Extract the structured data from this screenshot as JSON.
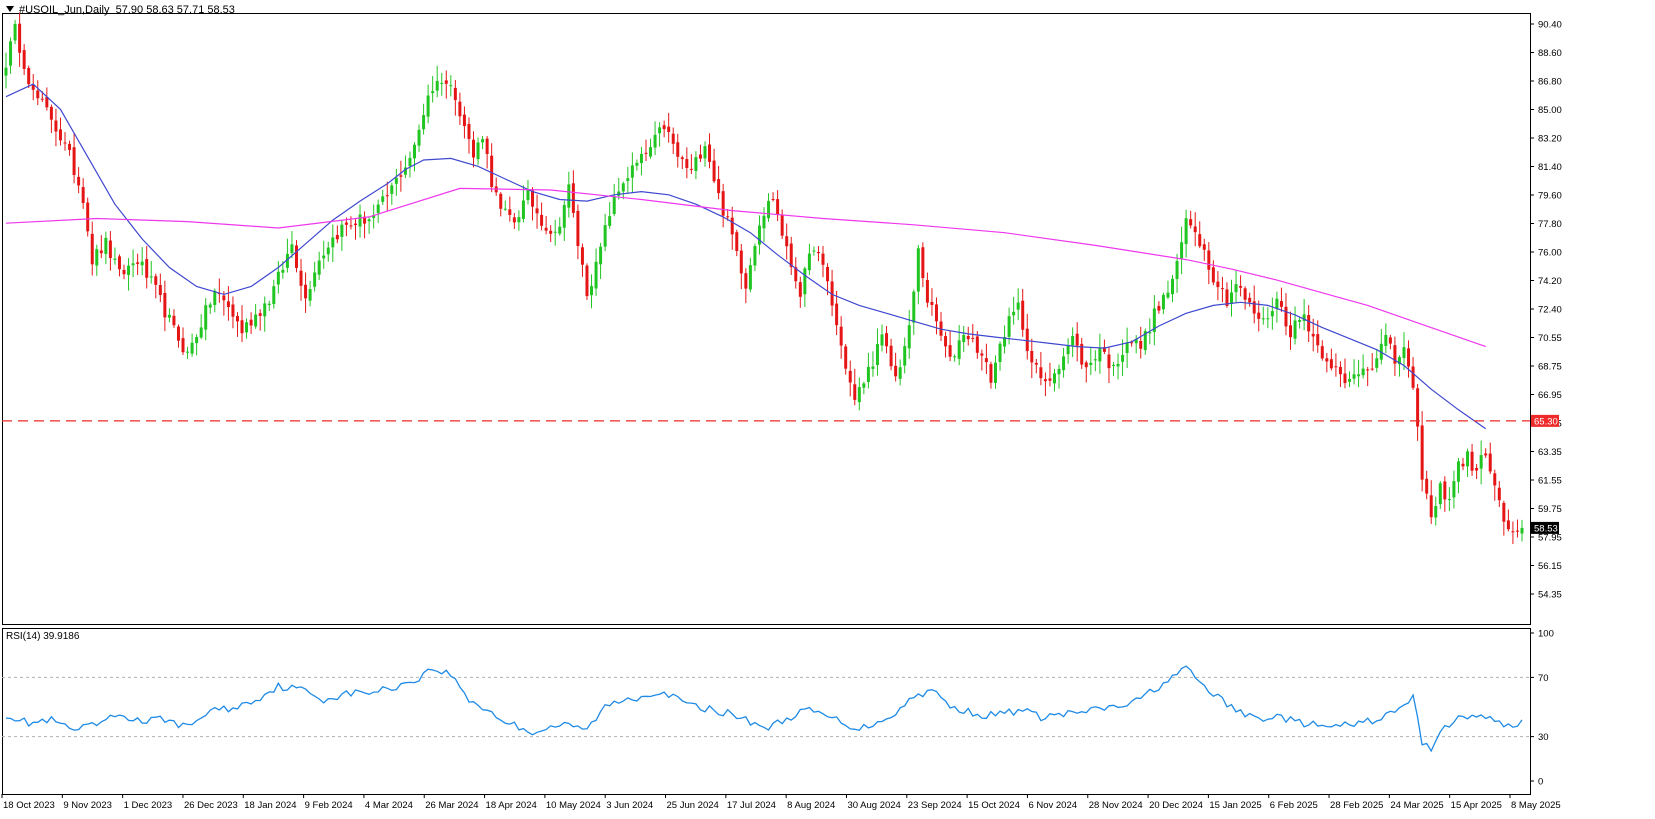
{
  "header": {
    "symbol": "#USOIL_Jun,Daily",
    "ohlc": "57.90 58.63 57.71 58.53"
  },
  "colors": {
    "bull": "#21c521",
    "bear": "#e51515",
    "ma_fast": "#3f48d0",
    "ma_slow": "#ee38ee",
    "level": "#ef2a2a",
    "rsi": "#1e8ae6"
  },
  "chart_data": [
    {
      "type": "candlestick",
      "title": "#USOIL_Jun,Daily",
      "x_tick_labels": [
        "18 Oct 2023",
        "9 Nov 2023",
        "1 Dec 2023",
        "26 Dec 2023",
        "18 Jan 2024",
        "9 Feb 2024",
        "4 Mar 2024",
        "26 Mar 2024",
        "18 Apr 2024",
        "10 May 2024",
        "3 Jun 2024",
        "25 Jun 2024",
        "17 Jul 2024",
        "8 Aug 2024",
        "30 Aug 2024",
        "23 Sep 2024",
        "15 Oct 2024",
        "6 Nov 2024",
        "28 Nov 2024",
        "20 Dec 2024",
        "15 Jan 2025",
        "6 Feb 2025",
        "28 Feb 2025",
        "24 Mar 2025",
        "15 Apr 2025",
        "8 May 2025"
      ],
      "y_tick_labels": [
        "90.40",
        "88.60",
        "86.80",
        "85.00",
        "83.20",
        "81.40",
        "79.60",
        "77.80",
        "76.00",
        "74.20",
        "72.40",
        "70.55",
        "68.75",
        "66.95",
        "65.15",
        "63.35",
        "61.55",
        "59.75",
        "57.95",
        "56.15",
        "54.35"
      ],
      "ylim": [
        54.0,
        91.0
      ],
      "close_path": [
        [
          0,
          88.0
        ],
        [
          2,
          90.0
        ],
        [
          6,
          86.0
        ],
        [
          10,
          84.5
        ],
        [
          14,
          82.0
        ],
        [
          17,
          79.5
        ],
        [
          19,
          75.5
        ],
        [
          22,
          76.5
        ],
        [
          25,
          74.5
        ],
        [
          29,
          75.5
        ],
        [
          33,
          73.5
        ],
        [
          37,
          71.0
        ],
        [
          40,
          69.5
        ],
        [
          43,
          71.5
        ],
        [
          46,
          73.5
        ],
        [
          49,
          72.5
        ],
        [
          52,
          71.0
        ],
        [
          55,
          72.0
        ],
        [
          58,
          73.0
        ],
        [
          61,
          75.0
        ],
        [
          63,
          76.5
        ],
        [
          66,
          73.0
        ],
        [
          68,
          75.0
        ],
        [
          71,
          76.5
        ],
        [
          74,
          77.5
        ],
        [
          78,
          78.0
        ],
        [
          81,
          78.2
        ],
        [
          84,
          79.5
        ],
        [
          87,
          81.0
        ],
        [
          90,
          82.5
        ],
        [
          93,
          86.0
        ],
        [
          96,
          87.0
        ],
        [
          99,
          86.0
        ],
        [
          101,
          84.0
        ],
        [
          103,
          82.0
        ],
        [
          105,
          83.5
        ],
        [
          107,
          80.5
        ],
        [
          109,
          78.5
        ],
        [
          112,
          78.0
        ],
        [
          115,
          79.5
        ],
        [
          118,
          78.0
        ],
        [
          121,
          77.0
        ],
        [
          124,
          80.0
        ],
        [
          126,
          76.5
        ],
        [
          128,
          73.5
        ],
        [
          130,
          75.0
        ],
        [
          133,
          78.5
        ],
        [
          136,
          80.5
        ],
        [
          139,
          81.5
        ],
        [
          142,
          82.5
        ],
        [
          145,
          84.0
        ],
        [
          148,
          82.0
        ],
        [
          151,
          81.0
        ],
        [
          154,
          83.0
        ],
        [
          157,
          79.5
        ],
        [
          160,
          77.0
        ],
        [
          163,
          74.0
        ],
        [
          166,
          78.0
        ],
        [
          169,
          79.5
        ],
        [
          172,
          76.0
        ],
        [
          175,
          73.5
        ],
        [
          178,
          76.5
        ],
        [
          181,
          74.0
        ],
        [
          184,
          70.0
        ],
        [
          187,
          66.5
        ],
        [
          190,
          68.5
        ],
        [
          193,
          70.5
        ],
        [
          196,
          68.0
        ],
        [
          199,
          71.0
        ],
        [
          201,
          76.0
        ],
        [
          203,
          73.0
        ],
        [
          205,
          71.5
        ],
        [
          208,
          69.0
        ],
        [
          211,
          71.0
        ],
        [
          214,
          70.0
        ],
        [
          217,
          68.0
        ],
        [
          220,
          71.0
        ],
        [
          223,
          72.5
        ],
        [
          226,
          69.0
        ],
        [
          229,
          67.5
        ],
        [
          232,
          69.0
        ],
        [
          235,
          70.5
        ],
        [
          238,
          68.5
        ],
        [
          241,
          70.0
        ],
        [
          244,
          68.5
        ],
        [
          247,
          70.5
        ],
        [
          250,
          70.0
        ],
        [
          253,
          72.0
        ],
        [
          256,
          73.5
        ],
        [
          258,
          75.0
        ],
        [
          260,
          78.0
        ],
        [
          262,
          77.5
        ],
        [
          264,
          76.0
        ],
        [
          266,
          74.5
        ],
        [
          269,
          73.0
        ],
        [
          271,
          74.0
        ],
        [
          274,
          72.5
        ],
        [
          277,
          71.5
        ],
        [
          280,
          73.0
        ],
        [
          283,
          71.0
        ],
        [
          286,
          72.0
        ],
        [
          289,
          70.0
        ],
        [
          292,
          69.0
        ],
        [
          295,
          67.5
        ],
        [
          298,
          68.5
        ],
        [
          301,
          69.0
        ],
        [
          304,
          70.5
        ],
        [
          306,
          69.0
        ],
        [
          308,
          70.0
        ],
        [
          310,
          67.0
        ],
        [
          312,
          62.0
        ],
        [
          314,
          59.0
        ],
        [
          316,
          61.0
        ],
        [
          318,
          60.5
        ],
        [
          320,
          62.5
        ],
        [
          322,
          63.0
        ],
        [
          324,
          62.0
        ],
        [
          326,
          63.5
        ],
        [
          328,
          61.0
        ],
        [
          330,
          59.0
        ],
        [
          332,
          58.0
        ],
        [
          334,
          58.53
        ]
      ],
      "overlays": [
        {
          "name": "MA fast",
          "points": [
            [
              0,
              85.8
            ],
            [
              6,
              86.6
            ],
            [
              12,
              85.0
            ],
            [
              18,
              82.0
            ],
            [
              24,
              79.0
            ],
            [
              30,
              76.8
            ],
            [
              36,
              75.0
            ],
            [
              42,
              73.8
            ],
            [
              48,
              73.3
            ],
            [
              54,
              73.8
            ],
            [
              60,
              75.0
            ],
            [
              66,
              76.5
            ],
            [
              72,
              78.0
            ],
            [
              78,
              79.2
            ],
            [
              84,
              80.3
            ],
            [
              88,
              81.2
            ],
            [
              92,
              81.8
            ],
            [
              98,
              81.9
            ],
            [
              104,
              81.4
            ],
            [
              110,
              80.6
            ],
            [
              116,
              79.8
            ],
            [
              122,
              79.3
            ],
            [
              128,
              79.2
            ],
            [
              134,
              79.6
            ],
            [
              140,
              79.8
            ],
            [
              146,
              79.6
            ],
            [
              152,
              79.0
            ],
            [
              158,
              78.2
            ],
            [
              164,
              77.2
            ],
            [
              170,
              75.8
            ],
            [
              176,
              74.5
            ],
            [
              182,
              73.3
            ],
            [
              188,
              72.6
            ],
            [
              194,
              72.1
            ],
            [
              200,
              71.6
            ],
            [
              206,
              71.1
            ],
            [
              212,
              70.8
            ],
            [
              218,
              70.6
            ],
            [
              224,
              70.4
            ],
            [
              230,
              70.2
            ],
            [
              236,
              70.0
            ],
            [
              242,
              69.9
            ],
            [
              248,
              70.3
            ],
            [
              254,
              71.3
            ],
            [
              260,
              72.1
            ],
            [
              266,
              72.6
            ],
            [
              272,
              72.8
            ],
            [
              278,
              72.6
            ],
            [
              284,
              72.0
            ],
            [
              290,
              71.2
            ],
            [
              296,
              70.5
            ],
            [
              302,
              69.8
            ],
            [
              308,
              68.8
            ],
            [
              314,
              67.3
            ],
            [
              320,
              66.0
            ],
            [
              326,
              64.8
            ]
          ]
        },
        {
          "name": "MA slow",
          "points": [
            [
              0,
              77.8
            ],
            [
              20,
              78.1
            ],
            [
              40,
              77.9
            ],
            [
              60,
              77.5
            ],
            [
              80,
              78.2
            ],
            [
              100,
              80.0
            ],
            [
              120,
              79.9
            ],
            [
              140,
              79.3
            ],
            [
              160,
              78.6
            ],
            [
              180,
              78.1
            ],
            [
              200,
              77.7
            ],
            [
              220,
              77.2
            ],
            [
              240,
              76.4
            ],
            [
              260,
              75.5
            ],
            [
              270,
              74.9
            ],
            [
              280,
              74.2
            ],
            [
              290,
              73.4
            ],
            [
              300,
              72.6
            ],
            [
              310,
              71.6
            ],
            [
              320,
              70.6
            ],
            [
              326,
              70.0
            ]
          ]
        }
      ],
      "levels": [
        {
          "value": 65.3,
          "label": "65.30"
        }
      ],
      "last_price": {
        "value": 58.53,
        "label": "58.53"
      }
    },
    {
      "type": "line",
      "title": "RSI(14) 39.9186",
      "y_tick_labels": [
        "100",
        "70",
        "30",
        "0"
      ],
      "ylim": [
        0,
        100
      ],
      "levels": [
        70,
        30
      ],
      "series": [
        {
          "points": [
            [
              0,
              45
            ],
            [
              5,
              39
            ],
            [
              10,
              41
            ],
            [
              15,
              34
            ],
            [
              20,
              38
            ],
            [
              25,
              45
            ],
            [
              30,
              40
            ],
            [
              35,
              42
            ],
            [
              40,
              36
            ],
            [
              45,
              48
            ],
            [
              50,
              49
            ],
            [
              55,
              55
            ],
            [
              60,
              64
            ],
            [
              65,
              62
            ],
            [
              70,
              55
            ],
            [
              75,
              59
            ],
            [
              80,
              60
            ],
            [
              84,
              62
            ],
            [
              90,
              68
            ],
            [
              94,
              76
            ],
            [
              98,
              72
            ],
            [
              102,
              55
            ],
            [
              106,
              48
            ],
            [
              110,
              40
            ],
            [
              116,
              33
            ],
            [
              122,
              38
            ],
            [
              128,
              35
            ],
            [
              132,
              50
            ],
            [
              136,
              55
            ],
            [
              140,
              57
            ],
            [
              144,
              61
            ],
            [
              148,
              55
            ],
            [
              152,
              50
            ],
            [
              156,
              48
            ],
            [
              160,
              45
            ],
            [
              164,
              40
            ],
            [
              168,
              36
            ],
            [
              172,
              42
            ],
            [
              176,
              48
            ],
            [
              180,
              45
            ],
            [
              184,
              40
            ],
            [
              188,
              35
            ],
            [
              192,
              40
            ],
            [
              196,
              46
            ],
            [
              200,
              57
            ],
            [
              204,
              62
            ],
            [
              208,
              50
            ],
            [
              212,
              47
            ],
            [
              216,
              44
            ],
            [
              220,
              46
            ],
            [
              224,
              48
            ],
            [
              228,
              43
            ],
            [
              232,
              45
            ],
            [
              236,
              46
            ],
            [
              240,
              48
            ],
            [
              244,
              50
            ],
            [
              248,
              52
            ],
            [
              252,
              60
            ],
            [
              256,
              68
            ],
            [
              260,
              76
            ],
            [
              264,
              64
            ],
            [
              268,
              54
            ],
            [
              272,
              46
            ],
            [
              276,
              42
            ],
            [
              280,
              44
            ],
            [
              284,
              40
            ],
            [
              288,
              38
            ],
            [
              292,
              36
            ],
            [
              296,
              38
            ],
            [
              300,
              40
            ],
            [
              304,
              44
            ],
            [
              308,
              50
            ],
            [
              310,
              58
            ],
            [
              312,
              25
            ],
            [
              314,
              22
            ],
            [
              316,
              35
            ],
            [
              320,
              42
            ],
            [
              324,
              45
            ],
            [
              328,
              40
            ],
            [
              332,
              37
            ],
            [
              334,
              39.9
            ]
          ]
        }
      ]
    }
  ]
}
